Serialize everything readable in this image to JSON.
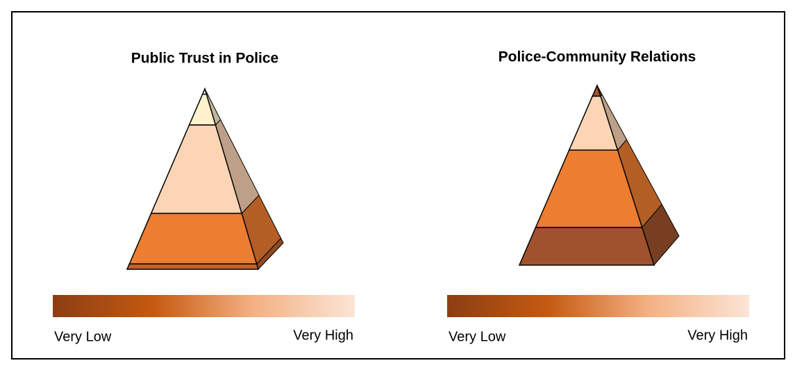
{
  "chart_data": [
    {
      "type": "pyramid",
      "title": "Public Trust in Police",
      "values": [
        3,
        28,
        49,
        17,
        3
      ],
      "colors": [
        "#c0622a",
        "#ed7d31",
        "#fcd5b4",
        "#fff2cc",
        "#ffffff"
      ],
      "scale_labels": [
        "Very Low",
        "Very High"
      ],
      "scale_colors": [
        "#8b3e12",
        "#c55a11",
        "#f4b183",
        "#fbe5d6"
      ]
    },
    {
      "type": "pyramid",
      "title": "Police-Community Relations",
      "values": [
        21,
        43,
        30,
        6
      ],
      "colors": [
        "#a0522d",
        "#ed7d31",
        "#fcd5b4",
        "#a0522d"
      ],
      "scale_labels": [
        "Very Low",
        "Very High"
      ],
      "scale_colors": [
        "#8b3e12",
        "#c55a11",
        "#f4b183",
        "#fbe5d6"
      ]
    }
  ]
}
